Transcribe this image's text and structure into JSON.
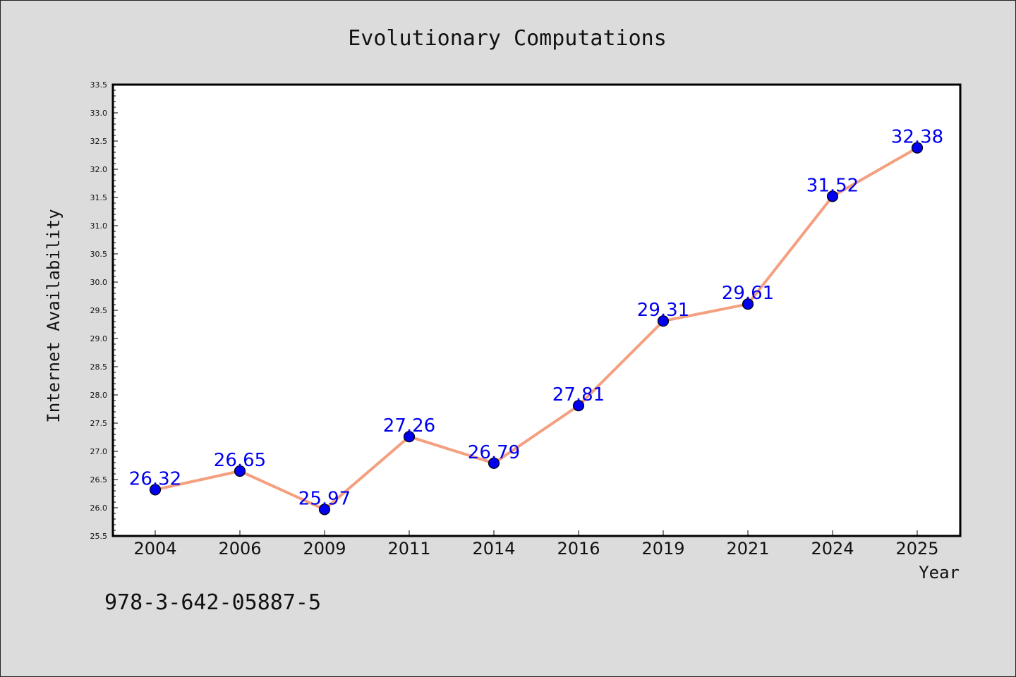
{
  "chart_data": {
    "type": "line",
    "title": "Evolutionary Computations",
    "xlabel": "Year",
    "ylabel": "Internet Availability",
    "categories": [
      "2004",
      "2006",
      "2009",
      "2011",
      "2014",
      "2016",
      "2019",
      "2021",
      "2024",
      "2025"
    ],
    "series": [
      {
        "values": [
          26.32,
          26.65,
          25.97,
          27.26,
          26.79,
          27.81,
          29.31,
          29.61,
          31.52,
          32.38
        ]
      }
    ],
    "data_labels": [
      "26.32",
      "26.65",
      "25.97",
      "27.26",
      "26.79",
      "27.81",
      "29.31",
      "29.61",
      "31.52",
      "32.38"
    ],
    "yticks": [
      "25.5",
      "26.0",
      "26.5",
      "27.0",
      "27.5",
      "28.0",
      "28.5",
      "29.0",
      "29.5",
      "30.0",
      "30.5",
      "31.0",
      "31.5",
      "32.0",
      "32.5",
      "33.0",
      "33.5"
    ],
    "ylim": [
      25.5,
      33.5
    ],
    "grid": false,
    "colors": {
      "line": "#f4a080",
      "marker": "#0000ee",
      "label": "#0000ee",
      "background": "#dcdcdc",
      "plot_bg": "#ffffff"
    }
  },
  "footer_text": "978-3-642-05887-5"
}
